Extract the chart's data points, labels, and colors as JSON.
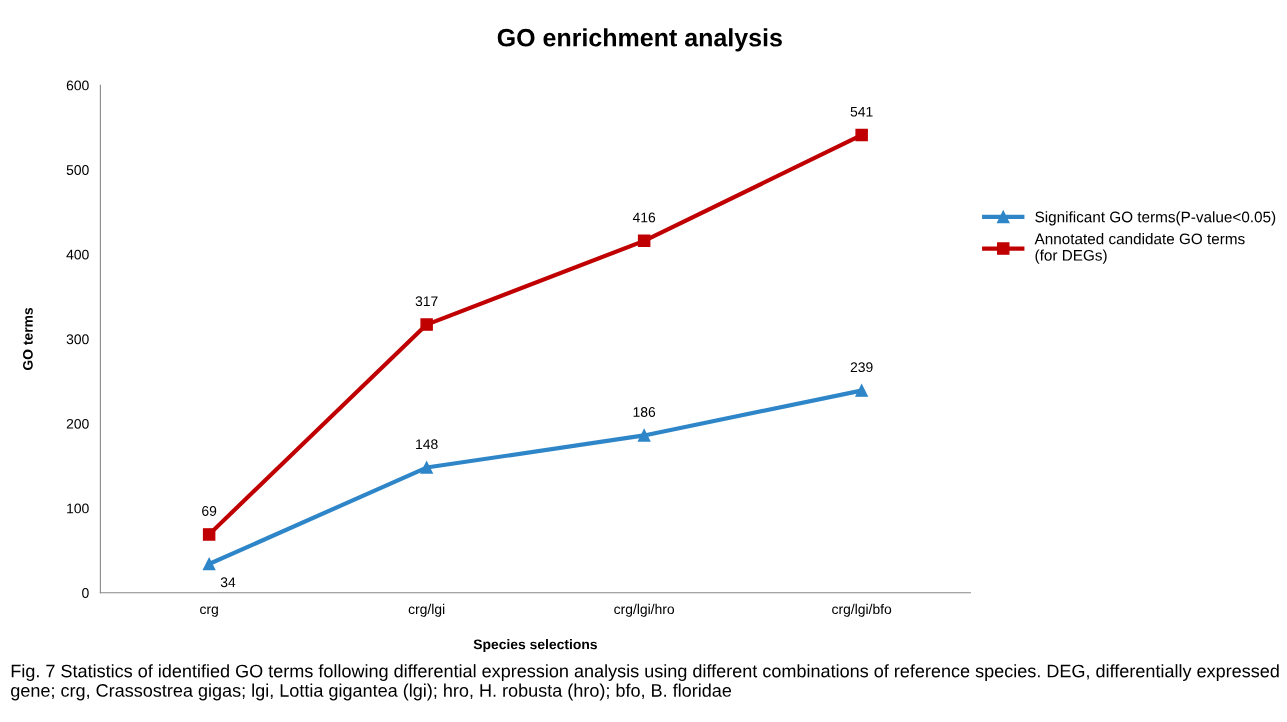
{
  "chart_data": {
    "type": "line",
    "title": "GO enrichment analysis",
    "xlabel": "Species selections",
    "ylabel": "GO terms",
    "categories": [
      "crg",
      "crg/lgi",
      "crg/lgi/hro",
      "crg/lgi/bfo"
    ],
    "series": [
      {
        "name": "Significant GO terms(P-value<0.05)",
        "color": "#2e86c8",
        "marker": "triangle",
        "values": [
          34,
          148,
          186,
          239
        ]
      },
      {
        "name": "Annotated candidate GO terms\n(for DEGs)",
        "color": "#c00000",
        "marker": "square",
        "values": [
          69,
          317,
          416,
          541
        ]
      }
    ],
    "ylim": [
      0,
      600
    ],
    "yticks": [
      0,
      100,
      200,
      300,
      400,
      500,
      600
    ],
    "grid": false,
    "legend": "right",
    "data_labels": true,
    "line_style": "solid",
    "annotations": [
      "Fig. 7 Statistics of identified GO terms following differential expression analysis using different combinations of reference species. DEG, differentially expressed gene; crg, Crassostrea gigas; lgi, Lottia gigantea (lgi); hro, H. robusta (hro); bfo, B. floridae"
    ]
  }
}
